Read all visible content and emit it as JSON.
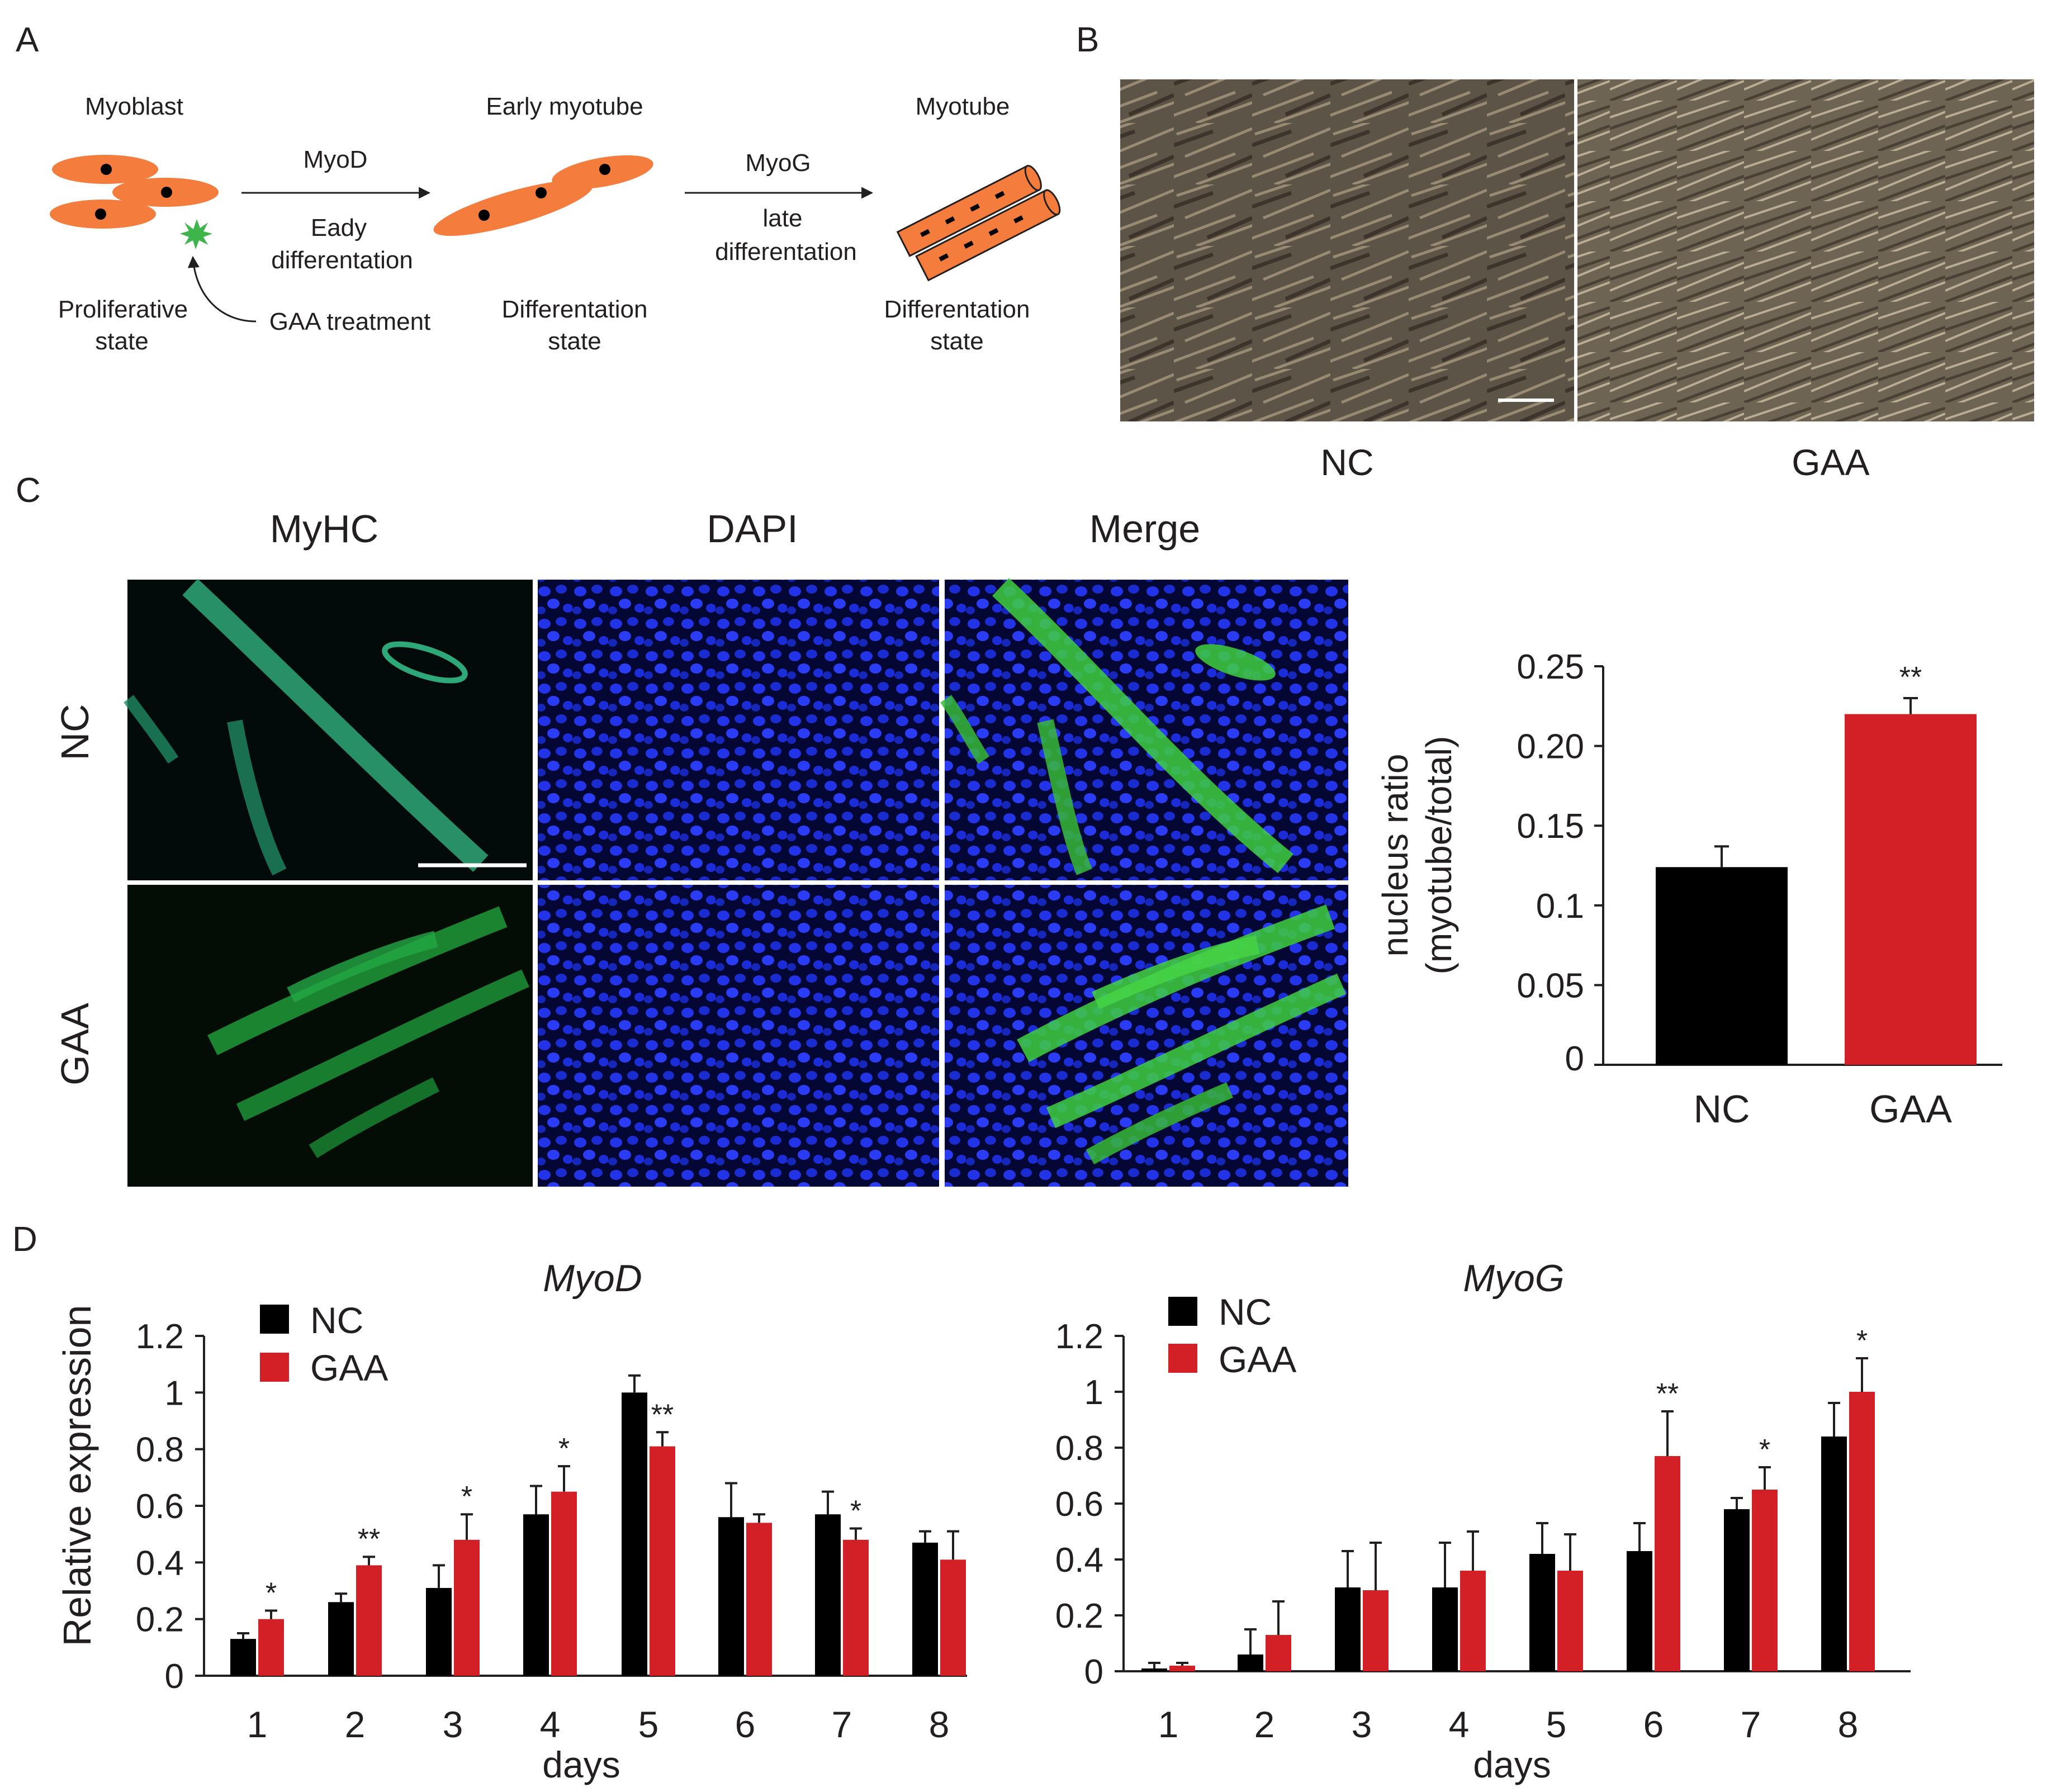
{
  "panels": {
    "A": {
      "letter": "A",
      "titles": [
        "Myoblast",
        "Early myotube",
        "Myotube"
      ],
      "arrow1": {
        "top": "MyoD",
        "bottom1": "Eady",
        "bottom2": "differentation"
      },
      "arrow2": {
        "top": "MyoG",
        "bottom1": "late",
        "bottom2": "differentation"
      },
      "state1": [
        "Proliferative",
        "state"
      ],
      "treatment": "GAA treatment",
      "state2": [
        "Differentation",
        "state"
      ],
      "state3": [
        "Differentation",
        "state"
      ],
      "colors": {
        "cell": "#f47c3c",
        "nucleus": "#000000",
        "gaa_burst": "#3db54a"
      }
    },
    "B": {
      "letter": "B",
      "labels": [
        "NC",
        "GAA"
      ]
    },
    "C": {
      "letter": "C",
      "channels": [
        "MyHC",
        "DAPI",
        "Merge"
      ],
      "channel_colors": [
        "#1db36a",
        "#2d4ccf",
        "#231f20"
      ],
      "rows": [
        "NC",
        "GAA"
      ]
    },
    "D": {
      "letter": "D"
    }
  },
  "chart_data": [
    {
      "type": "bar",
      "panel": "C",
      "categories": [
        "NC",
        "GAA"
      ],
      "values": [
        0.124,
        0.22
      ],
      "errors": [
        0.013,
        0.01
      ],
      "significance": [
        "",
        "**"
      ],
      "colors": [
        "#000000",
        "#d32027"
      ],
      "ylabel_line1": "nucleus ratio",
      "ylabel_line2": "(myotube/total)",
      "yticks": [
        "0",
        "0.05",
        "0.1",
        "0.15",
        "0.20",
        "0.25"
      ],
      "ylim": [
        0,
        0.25
      ]
    },
    {
      "type": "bar",
      "panel": "D",
      "title": "MyoD",
      "xlabel": "days",
      "ylabel": "Relative expression",
      "categories": [
        "1",
        "2",
        "3",
        "4",
        "5",
        "6",
        "7",
        "8"
      ],
      "yticks": [
        "0",
        "0.2",
        "0.4",
        "0.6",
        "0.8",
        "1",
        "1.2"
      ],
      "ylim": [
        0,
        1.2
      ],
      "series": [
        {
          "name": "NC",
          "color": "#000000",
          "values": [
            0.13,
            0.26,
            0.31,
            0.57,
            1.0,
            0.56,
            0.57,
            0.47
          ],
          "errors": [
            0.02,
            0.03,
            0.08,
            0.1,
            0.06,
            0.12,
            0.08,
            0.04
          ]
        },
        {
          "name": "GAA",
          "color": "#d32027",
          "values": [
            0.2,
            0.39,
            0.48,
            0.65,
            0.81,
            0.54,
            0.48,
            0.41
          ],
          "errors": [
            0.03,
            0.03,
            0.09,
            0.09,
            0.05,
            0.03,
            0.04,
            0.1
          ]
        }
      ],
      "significance": [
        "*",
        "**",
        "*",
        "*",
        "**",
        "",
        "*",
        ""
      ]
    },
    {
      "type": "bar",
      "panel": "D",
      "title": "MyoG",
      "xlabel": "days",
      "categories": [
        "1",
        "2",
        "3",
        "4",
        "5",
        "6",
        "7",
        "8"
      ],
      "yticks": [
        "0",
        "0.2",
        "0.4",
        "0.6",
        "0.8",
        "1",
        "1.2"
      ],
      "ylim": [
        0,
        1.2
      ],
      "series": [
        {
          "name": "NC",
          "color": "#000000",
          "values": [
            0.01,
            0.06,
            0.3,
            0.3,
            0.42,
            0.43,
            0.58,
            0.84
          ],
          "errors": [
            0.02,
            0.09,
            0.13,
            0.16,
            0.11,
            0.1,
            0.04,
            0.12
          ]
        },
        {
          "name": "GAA",
          "color": "#d32027",
          "values": [
            0.02,
            0.13,
            0.29,
            0.36,
            0.36,
            0.77,
            0.65,
            1.0
          ],
          "errors": [
            0.01,
            0.12,
            0.17,
            0.14,
            0.13,
            0.16,
            0.08,
            0.12
          ]
        }
      ],
      "significance": [
        "",
        "",
        "",
        "",
        "",
        "**",
        "*",
        "*"
      ]
    }
  ]
}
